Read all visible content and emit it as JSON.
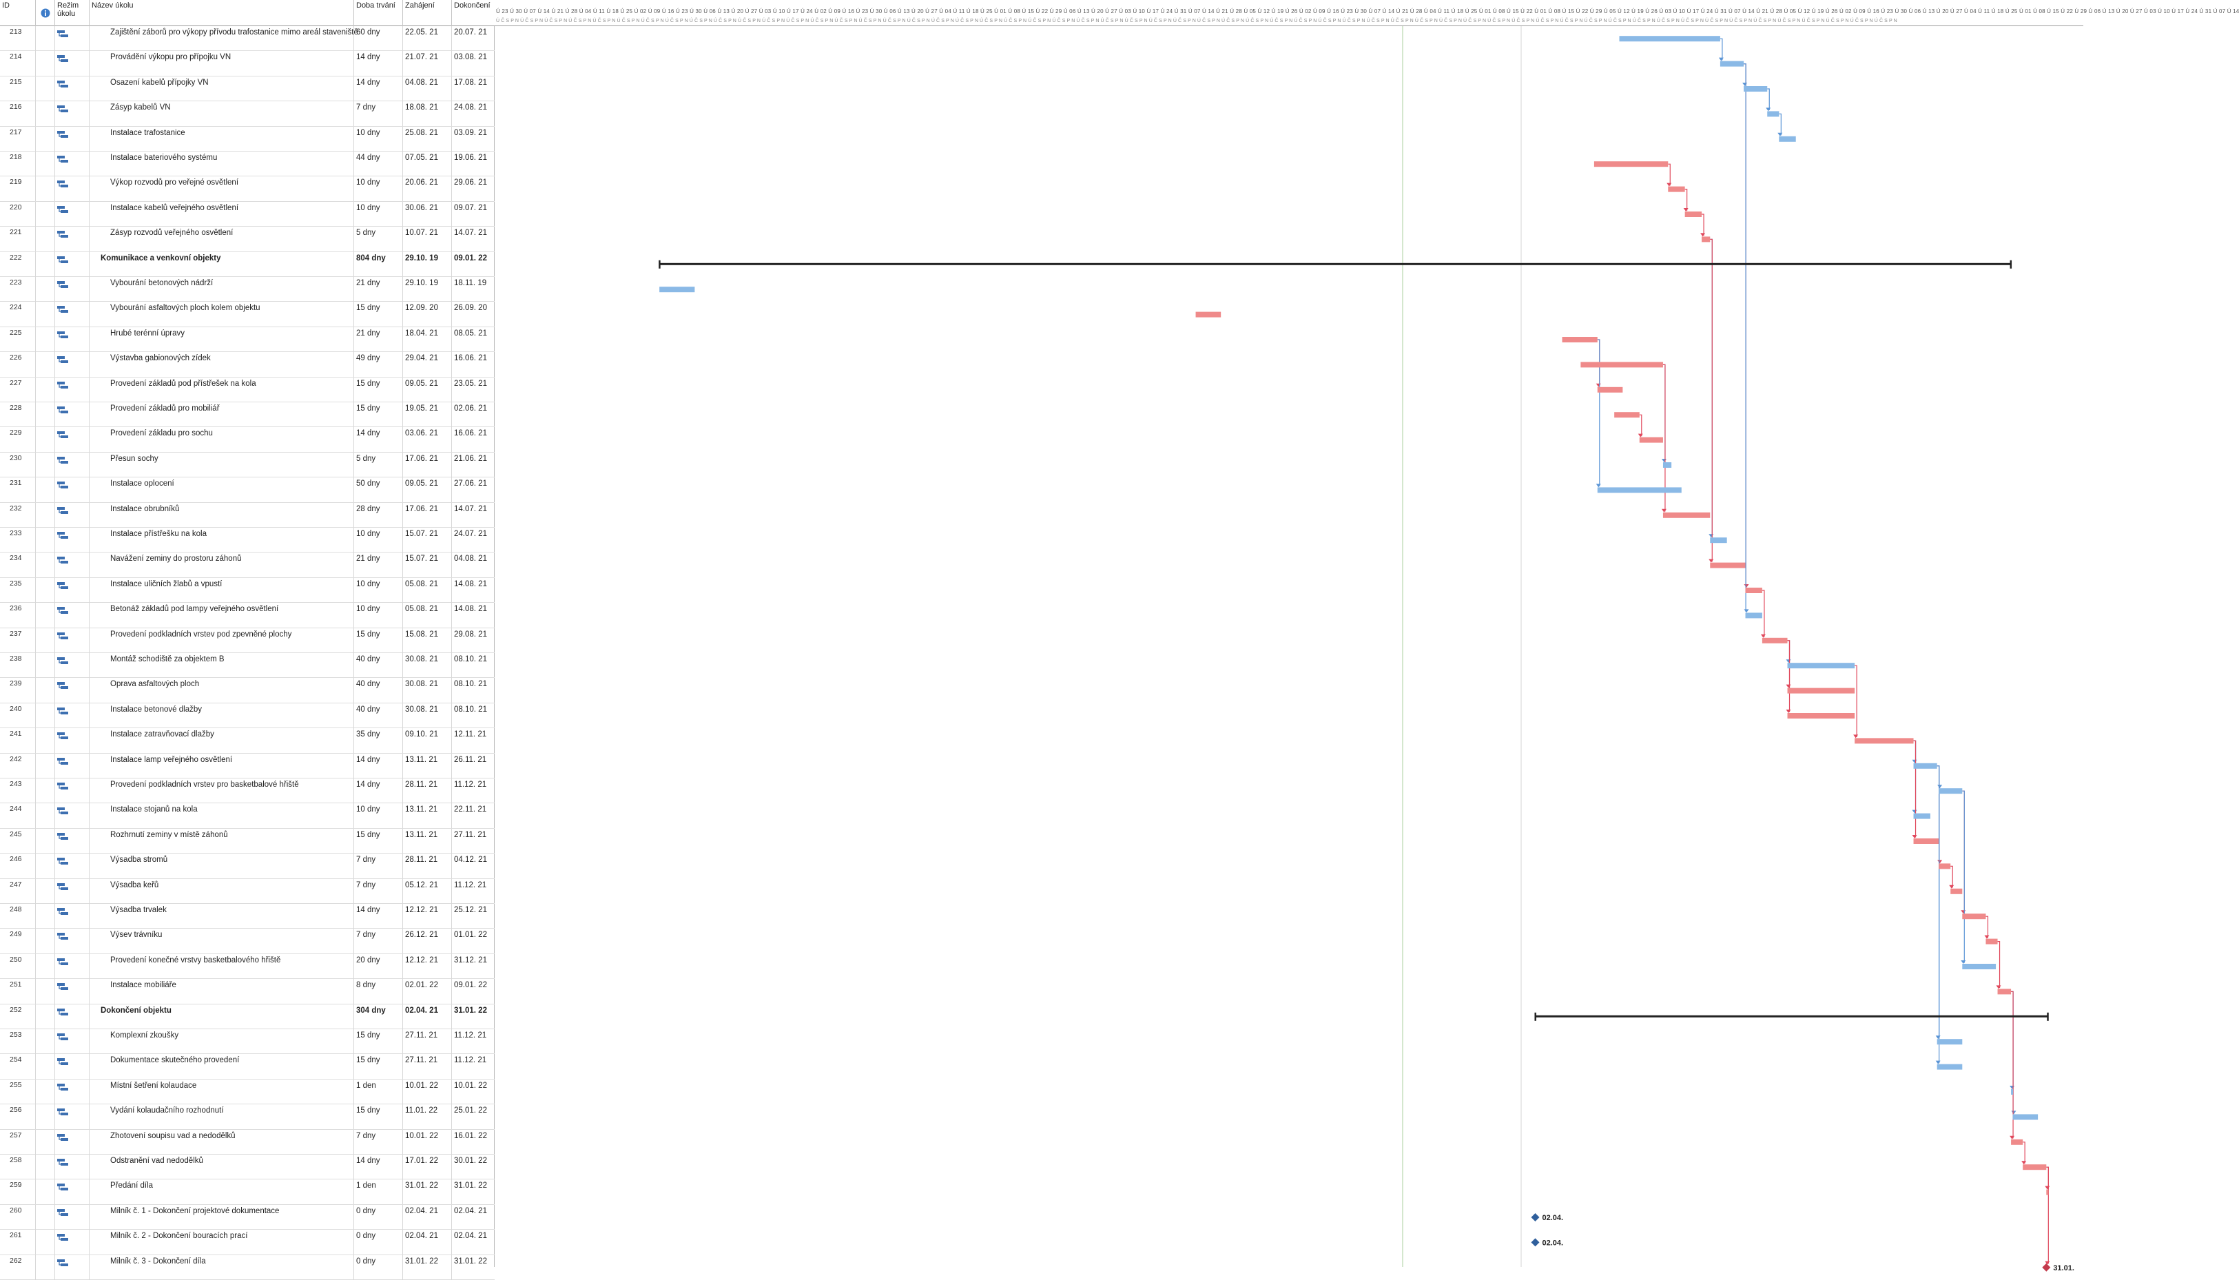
{
  "columns": {
    "id": "ID",
    "mode": "Režim úkolu",
    "name": "Název úkolu",
    "duration": "Doba trvání",
    "start": "Zahájení",
    "finish": "Dokončení"
  },
  "timeline": {
    "top": "Ú 23 Ú 30 Ú 07 Ú 14 Ú 21 Ú 28 Ú 04 Ú 11 Ú 18 Ú 25 Ú 02 Ú 09 Ú 16 Ú 23 Ú 30 Ú 06 Ú 13 Ú 20 Ú 27 Ú 03 Ú 10 Ú 17 Ú 24 Ú 02 Ú 09 Ú 16 Ú 23 Ú 30 Ú 06 Ú 13 Ú 20 Ú 27 Ú 04 Ú 11 Ú 18 Ú 25 Ú 01 Ú 08 Ú 15 Ú 22 Ú 29 Ú 06 Ú 13 Ú 20 Ú 27 Ú 03 Ú 10 Ú 17 Ú 24 Ú 31 Ú 07 Ú 14 Ú 21 Ú 28 Ú 05 Ú 12 Ú 19 Ú 26 Ú 02 Ú 09 Ú 16 Ú 23 Ú 30 Ú 07 Ú 14 Ú 21 Ú 28 Ú 04 Ú 11 Ú 18 Ú 25 Ú 01 Ú 08 Ú 15 Ú 22 Ú 01 Ú 08 Ú 15 Ú 22 Ú 29 Ú 05 Ú 12 Ú 19 Ú 26 Ú 03 Ú 10 Ú 17 Ú 24 Ú 31 Ú 07 Ú 14 Ú 21 Ú 28 Ú 05 Ú 12 Ú 19 Ú 26 Ú 02 Ú 09 Ú 16 Ú 23 Ú 30 Ú 06 Ú 13 Ú 20 Ú 27 Ú 04 Ú 11 Ú 18 Ú 25 Ú 01 Ú 08 Ú 15 Ú 22 Ú 29 Ú 06 Ú 13 Ú 20 Ú 27 Ú 03 Ú 10 Ú 17 Ú 24 Ú 31 Ú 07 Ú 14",
    "bottom": "Ú Č S P N Ú Č S P N Ú Č S P N Ú Č S P N Ú Č S P N Ú Č S P N Ú Č S P N Ú Č S P N Ú Č S P N Ú Č S P N Ú Č S P N Ú Č S P N Ú Č S P N Ú Č S P N Ú Č S P N Ú Č S P N Ú Č S P N Ú Č S P N Ú Č S P N Ú Č S P N Ú Č S P N Ú Č S P N Ú Č S P N Ú Č S P N Ú Č S P N Ú Č S P N Ú Č S P N Ú Č S P N Ú Č S P N Ú Č S P N Ú Č S P N Ú Č S P N Ú Č S P N Ú Č S P N Ú Č S P N Ú Č S P N Ú Č S P N Ú Č S P N Ú Č S P N Ú Č S P N Ú Č S P N Ú Č S P N Ú Č S P N Ú Č S P N Ú Č S P N Ú Č S P N Ú Č S P N Ú Č S P N Ú Č S P N Ú Č S P N Ú Č S P N Ú Č S P N Ú Č S P N Ú Č S P N Ú Č S P N Ú Č S P N Ú Č S P N Ú Č S P N"
  },
  "colors": {
    "normal_bar": "#8ab9e6",
    "critical_bar": "#ef8a8a",
    "normal_link": "#5b95d6",
    "critical_link": "#e0485c",
    "summary_bar": "#222222"
  },
  "icons": {
    "mode": "auto-scheduled-task-icon",
    "indicator": "info-icon"
  },
  "tasks": [
    {
      "id": "213",
      "name": "Zajištění záborů pro výkopy přívodu trafostanice mimo areál staveniště",
      "duration": "60 dny",
      "start": "22.05. 21",
      "finish": "20.07. 21",
      "level": 1,
      "type": "task",
      "critical": false
    },
    {
      "id": "214",
      "name": "Provádění výkopu pro přípojku VN",
      "duration": "14 dny",
      "start": "21.07. 21",
      "finish": "03.08. 21",
      "level": 1,
      "type": "task",
      "critical": false
    },
    {
      "id": "215",
      "name": "Osazení kabelů přípojky VN",
      "duration": "14 dny",
      "start": "04.08. 21",
      "finish": "17.08. 21",
      "level": 1,
      "type": "task",
      "critical": false
    },
    {
      "id": "216",
      "name": "Zásyp kabelů VN",
      "duration": "7 dny",
      "start": "18.08. 21",
      "finish": "24.08. 21",
      "level": 1,
      "type": "task",
      "critical": false
    },
    {
      "id": "217",
      "name": "Instalace trafostanice",
      "duration": "10 dny",
      "start": "25.08. 21",
      "finish": "03.09. 21",
      "level": 1,
      "type": "task",
      "critical": false
    },
    {
      "id": "218",
      "name": "Instalace bateriového systému",
      "duration": "44 dny",
      "start": "07.05. 21",
      "finish": "19.06. 21",
      "level": 1,
      "type": "task",
      "critical": true
    },
    {
      "id": "219",
      "name": "Výkop rozvodů pro veřejné osvětlení",
      "duration": "10 dny",
      "start": "20.06. 21",
      "finish": "29.06. 21",
      "level": 1,
      "type": "task",
      "critical": true
    },
    {
      "id": "220",
      "name": "Instalace kabelů veřejného osvětlení",
      "duration": "10 dny",
      "start": "30.06. 21",
      "finish": "09.07. 21",
      "level": 1,
      "type": "task",
      "critical": true
    },
    {
      "id": "221",
      "name": "Zásyp rozvodů veřejného osvětlení",
      "duration": "5 dny",
      "start": "10.07. 21",
      "finish": "14.07. 21",
      "level": 1,
      "type": "task",
      "critical": true
    },
    {
      "id": "222",
      "name": "Komunikace a venkovní objekty",
      "duration": "804 dny",
      "start": "29.10. 19",
      "finish": "09.01. 22",
      "level": 0,
      "type": "summary",
      "critical": false
    },
    {
      "id": "223",
      "name": "Vybourání betonových nádrží",
      "duration": "21 dny",
      "start": "29.10. 19",
      "finish": "18.11. 19",
      "level": 1,
      "type": "task",
      "critical": false
    },
    {
      "id": "224",
      "name": "Vybourání asfaltových ploch kolem objektu",
      "duration": "15 dny",
      "start": "12.09. 20",
      "finish": "26.09. 20",
      "level": 1,
      "type": "task",
      "critical": true
    },
    {
      "id": "225",
      "name": "Hrubé terénní úpravy",
      "duration": "21 dny",
      "start": "18.04. 21",
      "finish": "08.05. 21",
      "level": 1,
      "type": "task",
      "critical": true
    },
    {
      "id": "226",
      "name": "Výstavba gabionových zídek",
      "duration": "49 dny",
      "start": "29.04. 21",
      "finish": "16.06. 21",
      "level": 1,
      "type": "task",
      "critical": true
    },
    {
      "id": "227",
      "name": "Provedení základů pod přístřešek na kola",
      "duration": "15 dny",
      "start": "09.05. 21",
      "finish": "23.05. 21",
      "level": 1,
      "type": "task",
      "critical": true
    },
    {
      "id": "228",
      "name": "Provedení základů pro mobiliář",
      "duration": "15 dny",
      "start": "19.05. 21",
      "finish": "02.06. 21",
      "level": 1,
      "type": "task",
      "critical": true
    },
    {
      "id": "229",
      "name": "Provedení základu pro sochu",
      "duration": "14 dny",
      "start": "03.06. 21",
      "finish": "16.06. 21",
      "level": 1,
      "type": "task",
      "critical": true
    },
    {
      "id": "230",
      "name": "Přesun sochy",
      "duration": "5 dny",
      "start": "17.06. 21",
      "finish": "21.06. 21",
      "level": 1,
      "type": "task",
      "critical": false
    },
    {
      "id": "231",
      "name": "Instalace oplocení",
      "duration": "50 dny",
      "start": "09.05. 21",
      "finish": "27.06. 21",
      "level": 1,
      "type": "task",
      "critical": false
    },
    {
      "id": "232",
      "name": "Instalace obrubníků",
      "duration": "28 dny",
      "start": "17.06. 21",
      "finish": "14.07. 21",
      "level": 1,
      "type": "task",
      "critical": true
    },
    {
      "id": "233",
      "name": "Instalace přístřešku na kola",
      "duration": "10 dny",
      "start": "15.07. 21",
      "finish": "24.07. 21",
      "level": 1,
      "type": "task",
      "critical": false
    },
    {
      "id": "234",
      "name": "Navážení zeminy do prostoru záhonů",
      "duration": "21 dny",
      "start": "15.07. 21",
      "finish": "04.08. 21",
      "level": 1,
      "type": "task",
      "critical": true
    },
    {
      "id": "235",
      "name": "Instalace uličních žlabů a vpustí",
      "duration": "10 dny",
      "start": "05.08. 21",
      "finish": "14.08. 21",
      "level": 1,
      "type": "task",
      "critical": true
    },
    {
      "id": "236",
      "name": "Betonáž základů pod lampy veřejného osvětlení",
      "duration": "10 dny",
      "start": "05.08. 21",
      "finish": "14.08. 21",
      "level": 1,
      "type": "task",
      "critical": false
    },
    {
      "id": "237",
      "name": "Provedení podkladních vrstev pod zpevněné plochy",
      "duration": "15 dny",
      "start": "15.08. 21",
      "finish": "29.08. 21",
      "level": 1,
      "type": "task",
      "critical": true
    },
    {
      "id": "238",
      "name": "Montáž schodiště za objektem B",
      "duration": "40 dny",
      "start": "30.08. 21",
      "finish": "08.10. 21",
      "level": 1,
      "type": "task",
      "critical": false
    },
    {
      "id": "239",
      "name": "Oprava asfaltových ploch",
      "duration": "40 dny",
      "start": "30.08. 21",
      "finish": "08.10. 21",
      "level": 1,
      "type": "task",
      "critical": true
    },
    {
      "id": "240",
      "name": "Instalace betonové dlažby",
      "duration": "40 dny",
      "start": "30.08. 21",
      "finish": "08.10. 21",
      "level": 1,
      "type": "task",
      "critical": true
    },
    {
      "id": "241",
      "name": "Instalace zatravňovací dlažby",
      "duration": "35 dny",
      "start": "09.10. 21",
      "finish": "12.11. 21",
      "level": 1,
      "type": "task",
      "critical": true
    },
    {
      "id": "242",
      "name": "Instalace lamp veřejného osvětlení",
      "duration": "14 dny",
      "start": "13.11. 21",
      "finish": "26.11. 21",
      "level": 1,
      "type": "task",
      "critical": false
    },
    {
      "id": "243",
      "name": "Provedení podkladních vrstev pro basketbalové hřiště",
      "duration": "14 dny",
      "start": "28.11. 21",
      "finish": "11.12. 21",
      "level": 1,
      "type": "task",
      "critical": false
    },
    {
      "id": "244",
      "name": "Instalace stojanů na kola",
      "duration": "10 dny",
      "start": "13.11. 21",
      "finish": "22.11. 21",
      "level": 1,
      "type": "task",
      "critical": false
    },
    {
      "id": "245",
      "name": "Rozhrnutí zeminy v místě záhonů",
      "duration": "15 dny",
      "start": "13.11. 21",
      "finish": "27.11. 21",
      "level": 1,
      "type": "task",
      "critical": true
    },
    {
      "id": "246",
      "name": "Výsadba stromů",
      "duration": "7 dny",
      "start": "28.11. 21",
      "finish": "04.12. 21",
      "level": 1,
      "type": "task",
      "critical": true
    },
    {
      "id": "247",
      "name": "Výsadba keřů",
      "duration": "7 dny",
      "start": "05.12. 21",
      "finish": "11.12. 21",
      "level": 1,
      "type": "task",
      "critical": true
    },
    {
      "id": "248",
      "name": "Výsadba trvalek",
      "duration": "14 dny",
      "start": "12.12. 21",
      "finish": "25.12. 21",
      "level": 1,
      "type": "task",
      "critical": true
    },
    {
      "id": "249",
      "name": "Výsev trávníku",
      "duration": "7 dny",
      "start": "26.12. 21",
      "finish": "01.01. 22",
      "level": 1,
      "type": "task",
      "critical": true
    },
    {
      "id": "250",
      "name": "Provedení konečné vrstvy basketbalového hřiště",
      "duration": "20 dny",
      "start": "12.12. 21",
      "finish": "31.12. 21",
      "level": 1,
      "type": "task",
      "critical": false
    },
    {
      "id": "251",
      "name": "Instalace mobiliáře",
      "duration": "8 dny",
      "start": "02.01. 22",
      "finish": "09.01. 22",
      "level": 1,
      "type": "task",
      "critical": true
    },
    {
      "id": "252",
      "name": "Dokončení objektu",
      "duration": "304 dny",
      "start": "02.04. 21",
      "finish": "31.01. 22",
      "level": 0,
      "type": "summary",
      "critical": false
    },
    {
      "id": "253",
      "name": "Komplexní zkoušky",
      "duration": "15 dny",
      "start": "27.11. 21",
      "finish": "11.12. 21",
      "level": 1,
      "type": "task",
      "critical": false
    },
    {
      "id": "254",
      "name": "Dokumentace skutečného provedení",
      "duration": "15 dny",
      "start": "27.11. 21",
      "finish": "11.12. 21",
      "level": 1,
      "type": "task",
      "critical": false
    },
    {
      "id": "255",
      "name": "Místní šetření kolaudace",
      "duration": "1 den",
      "start": "10.01. 22",
      "finish": "10.01. 22",
      "level": 1,
      "type": "task",
      "critical": false
    },
    {
      "id": "256",
      "name": "Vydání kolaudačního rozhodnutí",
      "duration": "15 dny",
      "start": "11.01. 22",
      "finish": "25.01. 22",
      "level": 1,
      "type": "task",
      "critical": false
    },
    {
      "id": "257",
      "name": "Zhotovení soupisu vad a nedodělků",
      "duration": "7 dny",
      "start": "10.01. 22",
      "finish": "16.01. 22",
      "level": 1,
      "type": "task",
      "critical": true
    },
    {
      "id": "258",
      "name": "Odstranění vad nedodělků",
      "duration": "14 dny",
      "start": "17.01. 22",
      "finish": "30.01. 22",
      "level": 1,
      "type": "task",
      "critical": true
    },
    {
      "id": "259",
      "name": "Předání díla",
      "duration": "1 den",
      "start": "31.01. 22",
      "finish": "31.01. 22",
      "level": 1,
      "type": "task",
      "critical": true
    },
    {
      "id": "260",
      "name": "Milník č. 1 - Dokončení projektové dokumentace",
      "duration": "0 dny",
      "start": "02.04. 21",
      "finish": "02.04. 21",
      "level": 1,
      "type": "milestone",
      "critical": false,
      "label": "02.04."
    },
    {
      "id": "261",
      "name": "Milník č. 2 - Dokončení bouracích prací",
      "duration": "0 dny",
      "start": "02.04. 21",
      "finish": "02.04. 21",
      "level": 1,
      "type": "milestone",
      "critical": false,
      "label": "02.04."
    },
    {
      "id": "262",
      "name": "Milník č. 3 - Dokončení díla",
      "duration": "0 dny",
      "start": "31.01. 22",
      "finish": "31.01. 22",
      "level": 1,
      "type": "milestone",
      "critical": true,
      "label": "31.01."
    }
  ]
}
